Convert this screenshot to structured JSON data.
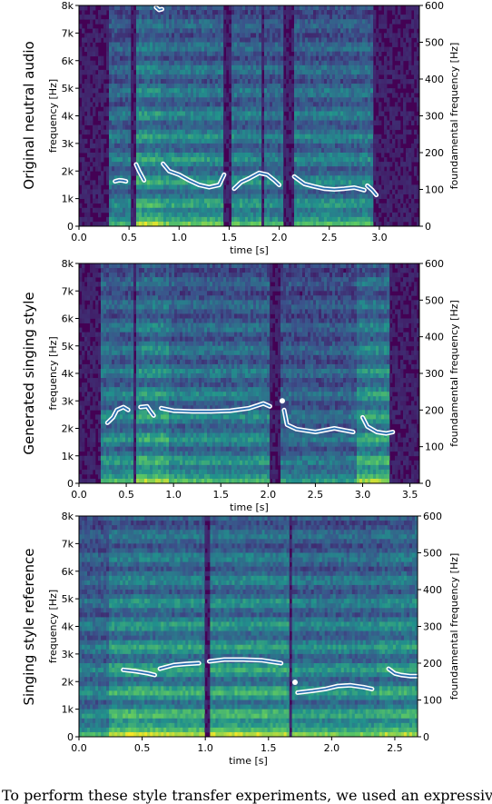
{
  "chart_data": [
    {
      "type": "heatmap",
      "row_label": "Original neutral audio",
      "xlabel": "time [s]",
      "ylabel": "frequency [Hz]",
      "ylabel_right": "foundamental frequency [Hz]",
      "xlim": [
        0,
        3.4
      ],
      "ylim": [
        0,
        8000
      ],
      "ylim_right": [
        0,
        600
      ],
      "x_ticks": [
        0.0,
        0.5,
        1.0,
        1.5,
        2.0,
        2.5,
        3.0
      ],
      "x_tick_labels": [
        "0.0",
        "0.5",
        "1.0",
        "1.5",
        "2.0",
        "2.5",
        "3.0"
      ],
      "y_ticks": [
        0,
        1000,
        2000,
        3000,
        4000,
        5000,
        6000,
        7000,
        8000
      ],
      "y_tick_labels": [
        "0",
        "1k",
        "2k",
        "3k",
        "4k",
        "5k",
        "6k",
        "7k",
        "8k"
      ],
      "y_right_ticks": [
        0,
        100,
        200,
        300,
        400,
        500,
        600
      ],
      "y_right_tick_labels": [
        "0",
        "100",
        "200",
        "300",
        "400",
        "500",
        "600"
      ],
      "f0_segments": [
        [
          [
            0.36,
            122
          ],
          [
            0.4,
            125
          ],
          [
            0.44,
            124
          ],
          [
            0.47,
            122
          ]
        ],
        [
          [
            0.57,
            168
          ],
          [
            0.6,
            150
          ],
          [
            0.65,
            125
          ]
        ],
        [
          [
            0.77,
            595
          ],
          [
            0.8,
            588
          ],
          [
            0.83,
            590
          ]
        ],
        [
          [
            0.84,
            170
          ],
          [
            0.9,
            150
          ],
          [
            1.0,
            140
          ],
          [
            1.1,
            125
          ],
          [
            1.2,
            112
          ],
          [
            1.3,
            106
          ],
          [
            1.4,
            112
          ],
          [
            1.45,
            140
          ]
        ],
        [
          [
            1.55,
            102
          ],
          [
            1.62,
            120
          ],
          [
            1.7,
            130
          ],
          [
            1.8,
            145
          ],
          [
            1.88,
            140
          ],
          [
            1.95,
            125
          ],
          [
            2.0,
            112
          ]
        ],
        [
          [
            2.15,
            135
          ],
          [
            2.25,
            115
          ],
          [
            2.35,
            108
          ],
          [
            2.45,
            102
          ],
          [
            2.55,
            100
          ],
          [
            2.65,
            102
          ],
          [
            2.75,
            105
          ],
          [
            2.85,
            98
          ]
        ],
        [
          [
            2.88,
            110
          ],
          [
            2.93,
            98
          ],
          [
            2.97,
            85
          ]
        ]
      ],
      "spectrogram_segments": [
        [
          0.3,
          0.52,
          0.55
        ],
        [
          0.56,
          0.82,
          0.8
        ],
        [
          0.82,
          1.45,
          0.68
        ],
        [
          1.52,
          1.82,
          0.62
        ],
        [
          1.85,
          2.05,
          0.55
        ],
        [
          2.15,
          2.95,
          0.6
        ]
      ]
    },
    {
      "type": "heatmap",
      "row_label": "Generated singing style",
      "xlabel": "time [s]",
      "ylabel": "frequency [Hz]",
      "ylabel_right": "foundamental frequency [Hz]",
      "xlim": [
        0,
        3.6
      ],
      "ylim": [
        0,
        8000
      ],
      "ylim_right": [
        0,
        600
      ],
      "x_ticks": [
        0.0,
        0.5,
        1.0,
        1.5,
        2.0,
        2.5,
        3.0,
        3.5
      ],
      "x_tick_labels": [
        "0.0",
        "0.5",
        "1.0",
        "1.5",
        "2.0",
        "2.5",
        "3.0",
        "3.5"
      ],
      "y_ticks": [
        0,
        1000,
        2000,
        3000,
        4000,
        5000,
        6000,
        7000,
        8000
      ],
      "y_tick_labels": [
        "0",
        "1k",
        "2k",
        "3k",
        "4k",
        "5k",
        "6k",
        "7k",
        "8k"
      ],
      "y_right_ticks": [
        0,
        100,
        200,
        300,
        400,
        500,
        600
      ],
      "y_right_tick_labels": [
        "0",
        "100",
        "200",
        "300",
        "400",
        "500",
        "600"
      ],
      "f0_segments": [
        [
          [
            0.3,
            165
          ],
          [
            0.36,
            180
          ],
          [
            0.4,
            200
          ],
          [
            0.47,
            208
          ],
          [
            0.52,
            200
          ]
        ],
        [
          [
            0.65,
            208
          ],
          [
            0.72,
            210
          ],
          [
            0.76,
            195
          ],
          [
            0.79,
            185
          ]
        ],
        [
          [
            0.87,
            205
          ],
          [
            1.0,
            198
          ],
          [
            1.2,
            196
          ],
          [
            1.4,
            196
          ],
          [
            1.6,
            198
          ],
          [
            1.8,
            205
          ],
          [
            1.95,
            218
          ],
          [
            2.02,
            210
          ]
        ],
        [
          [
            2.15,
            225
          ]
        ],
        [
          [
            2.17,
            200
          ],
          [
            2.2,
            160
          ],
          [
            2.3,
            148
          ],
          [
            2.5,
            140
          ],
          [
            2.7,
            150
          ],
          [
            2.8,
            145
          ],
          [
            2.9,
            140
          ]
        ],
        [
          [
            3.0,
            180
          ],
          [
            3.05,
            155
          ],
          [
            3.15,
            140
          ],
          [
            3.25,
            136
          ],
          [
            3.32,
            140
          ]
        ]
      ],
      "spectrogram_segments": [
        [
          0.22,
          0.58,
          0.6
        ],
        [
          0.6,
          0.95,
          0.78
        ],
        [
          0.96,
          2.02,
          0.6
        ],
        [
          2.12,
          2.95,
          0.45
        ],
        [
          2.95,
          3.28,
          0.78
        ]
      ]
    },
    {
      "type": "heatmap",
      "row_label": "Singing style reference",
      "xlabel": "time [s]",
      "ylabel": "frequency [Hz]",
      "ylabel_right": "foundamental frequency [Hz]",
      "xlim": [
        0,
        2.68
      ],
      "ylim": [
        0,
        8000
      ],
      "ylim_right": [
        0,
        600
      ],
      "x_ticks": [
        0.0,
        0.5,
        1.0,
        1.5,
        2.0,
        2.5
      ],
      "x_tick_labels": [
        "0.0",
        "0.5",
        "1.0",
        "1.5",
        "2.0",
        "2.5"
      ],
      "y_ticks": [
        0,
        1000,
        2000,
        3000,
        4000,
        5000,
        6000,
        7000,
        8000
      ],
      "y_tick_labels": [
        "0",
        "1k",
        "2k",
        "3k",
        "4k",
        "5k",
        "6k",
        "7k",
        "8k"
      ],
      "y_right_ticks": [
        0,
        100,
        200,
        300,
        400,
        500,
        600
      ],
      "y_right_tick_labels": [
        "0",
        "100",
        "200",
        "300",
        "400",
        "500",
        "600"
      ],
      "f0_segments": [
        [
          [
            0.35,
            182
          ],
          [
            0.45,
            178
          ],
          [
            0.55,
            172
          ],
          [
            0.6,
            168
          ]
        ],
        [
          [
            0.64,
            185
          ],
          [
            0.75,
            195
          ],
          [
            0.85,
            198
          ],
          [
            0.95,
            200
          ]
        ],
        [
          [
            1.03,
            205
          ],
          [
            1.15,
            210
          ],
          [
            1.3,
            210
          ],
          [
            1.45,
            208
          ],
          [
            1.6,
            200
          ]
        ],
        [
          [
            1.71,
            148
          ]
        ],
        [
          [
            1.73,
            120
          ],
          [
            1.85,
            125
          ],
          [
            1.95,
            130
          ],
          [
            2.05,
            138
          ],
          [
            2.15,
            140
          ],
          [
            2.25,
            135
          ],
          [
            2.32,
            130
          ]
        ],
        [
          [
            2.45,
            185
          ],
          [
            2.5,
            172
          ],
          [
            2.55,
            168
          ],
          [
            2.62,
            165
          ],
          [
            2.68,
            165
          ]
        ]
      ],
      "spectrogram_segments": [
        [
          0.0,
          0.3,
          0.55
        ],
        [
          0.24,
          0.62,
          0.82
        ],
        [
          0.63,
          1.0,
          0.8
        ],
        [
          1.03,
          1.67,
          0.8
        ],
        [
          1.68,
          2.38,
          0.68
        ],
        [
          2.38,
          2.68,
          0.78
        ]
      ]
    }
  ],
  "caption": "To perform these style transfer experiments, we used an expressive"
}
